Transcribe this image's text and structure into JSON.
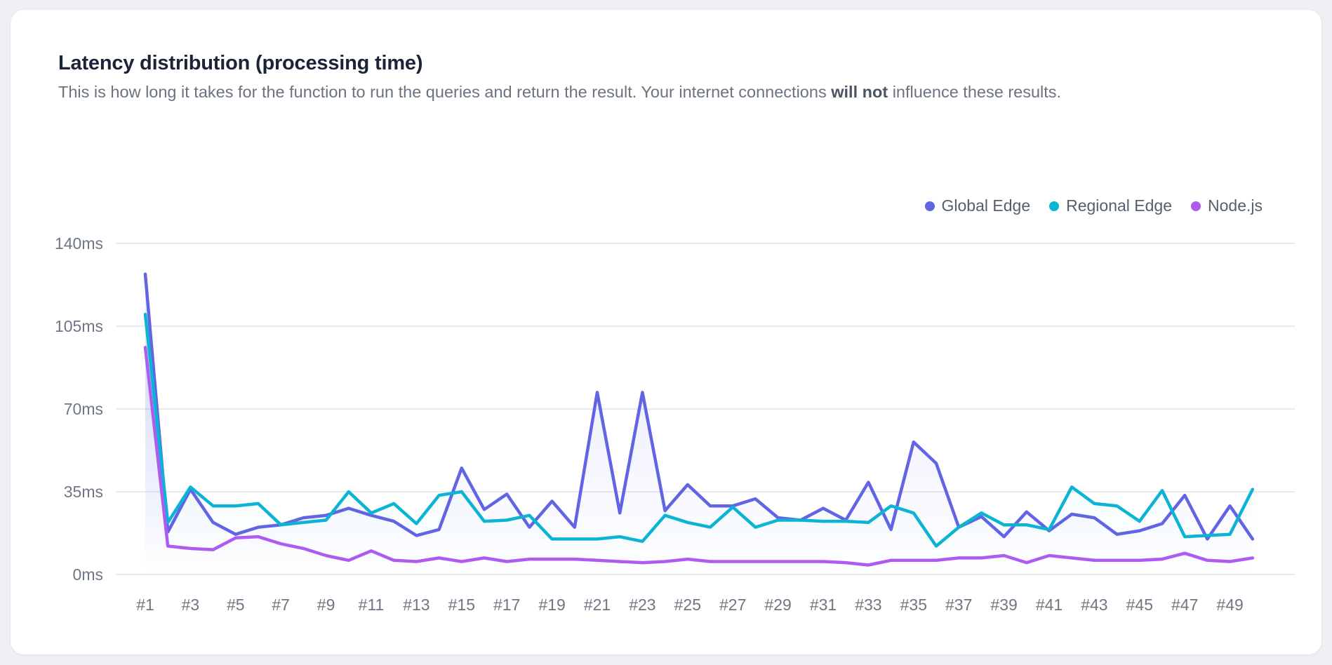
{
  "card": {
    "title": "Latency distribution (processing time)",
    "subtitle_before": "This is how long it takes for the function to run the queries and return the result. Your internet connections ",
    "subtitle_bold": "will not",
    "subtitle_after": " influence these results."
  },
  "colors": {
    "background": "#eef0f3",
    "card_background": "#ffffff",
    "card_border": "#e5e8ec",
    "gridline": "#e8eaee",
    "axis_text": "#6f7684",
    "title_text": "#1b2437",
    "subtitle_text": "#6b7280"
  },
  "chart_data": {
    "type": "line",
    "unit": "ms",
    "grid": "horizontal",
    "legend_position": "top-right",
    "ylim": [
      0,
      140
    ],
    "points_count": 50,
    "y_ticks": [
      {
        "value": 140,
        "label": "140ms"
      },
      {
        "value": 105,
        "label": "105ms"
      },
      {
        "value": 70,
        "label": "70ms"
      },
      {
        "value": 35,
        "label": "35ms"
      },
      {
        "value": 0,
        "label": "0ms"
      }
    ],
    "x_tick_labels": [
      "#1",
      "#3",
      "#5",
      "#7",
      "#9",
      "#11",
      "#13",
      "#15",
      "#17",
      "#19",
      "#21",
      "#23",
      "#25",
      "#27",
      "#29",
      "#31",
      "#33",
      "#35",
      "#37",
      "#39",
      "#41",
      "#43",
      "#45",
      "#47",
      "#49"
    ],
    "series": [
      {
        "name": "Global Edge",
        "color": "#6165e4",
        "fill_opacity": 0.16,
        "values": [
          127,
          18,
          36,
          22,
          17,
          20,
          21,
          24,
          25,
          28,
          25,
          22.5,
          16.5,
          19,
          45,
          27.5,
          34,
          20,
          31,
          20,
          77,
          26,
          77,
          27,
          38,
          29,
          29,
          32,
          24,
          23,
          28,
          23,
          39,
          19,
          56,
          47,
          20,
          24.5,
          16,
          26.5,
          18.5,
          25.5,
          24,
          17,
          18.5,
          21.5,
          33.5,
          15,
          29,
          15
        ]
      },
      {
        "name": "Regional Edge",
        "color": "#0cb4d4",
        "fill_opacity": 0.1,
        "values": [
          110,
          22,
          37,
          29,
          29,
          30,
          21,
          22,
          23,
          35,
          26,
          30,
          21.5,
          33.5,
          35,
          22.5,
          23,
          25,
          15,
          15,
          15,
          16,
          14,
          25,
          22,
          20,
          28.5,
          20,
          23,
          23,
          22.5,
          22.5,
          22,
          29,
          26,
          12,
          20,
          26,
          21,
          21,
          19,
          37,
          30,
          29,
          22.5,
          35.5,
          16,
          16.5,
          17,
          36
        ]
      },
      {
        "name": "Node.js",
        "color": "#ae5bf2",
        "fill_opacity": 0.08,
        "values": [
          96,
          12,
          11,
          10.5,
          15.5,
          16,
          13,
          11,
          8,
          6,
          10,
          6,
          5.5,
          7,
          5.5,
          7,
          5.5,
          6.5,
          6.5,
          6.5,
          6,
          5.5,
          5,
          5.5,
          6.5,
          5.5,
          5.5,
          5.5,
          5.5,
          5.5,
          5.5,
          5,
          4,
          6,
          6,
          6,
          7,
          7,
          8,
          5,
          8,
          7,
          6,
          6,
          6,
          6.5,
          9,
          6,
          5.5,
          7
        ]
      }
    ]
  }
}
